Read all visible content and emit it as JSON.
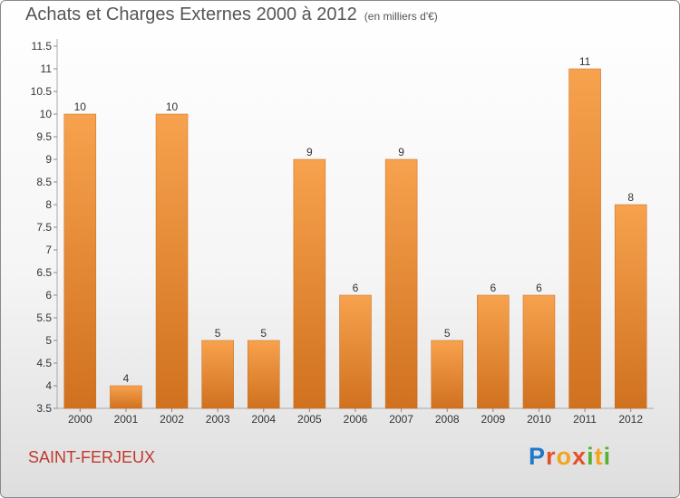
{
  "header": {
    "title": "Achats et Charges Externes 2000 à 2012",
    "unit": "(en milliers d'€)"
  },
  "footer": {
    "commune": "SAINT-FERJEUX",
    "logo_letters": [
      "P",
      "r",
      "o",
      "x",
      "i",
      "t",
      "i"
    ]
  },
  "colors": {
    "bar_top": "#f7a24e",
    "bar_bottom": "#d0711f",
    "text": "#555555",
    "commune": "#c0392b"
  },
  "chart_data": {
    "type": "bar",
    "title": "Achats et Charges Externes 2000 à 2012",
    "subtitle": "(en milliers d'€)",
    "categories": [
      "2000",
      "2001",
      "2002",
      "2003",
      "2004",
      "2005",
      "2006",
      "2007",
      "2008",
      "2009",
      "2010",
      "2011",
      "2012"
    ],
    "values": [
      10,
      4,
      10,
      5,
      5,
      9,
      6,
      9,
      5,
      6,
      6,
      11,
      8
    ],
    "ylim": [
      3.5,
      11.5
    ],
    "yticks": [
      "3.5",
      "4",
      "4.5",
      "5",
      "5.5",
      "6",
      "6.5",
      "7",
      "7.5",
      "8",
      "8.5",
      "9",
      "9.5",
      "10",
      "10.5",
      "11",
      "11.5"
    ],
    "xlabel": "",
    "ylabel": "",
    "grid": false,
    "legend": "none"
  }
}
